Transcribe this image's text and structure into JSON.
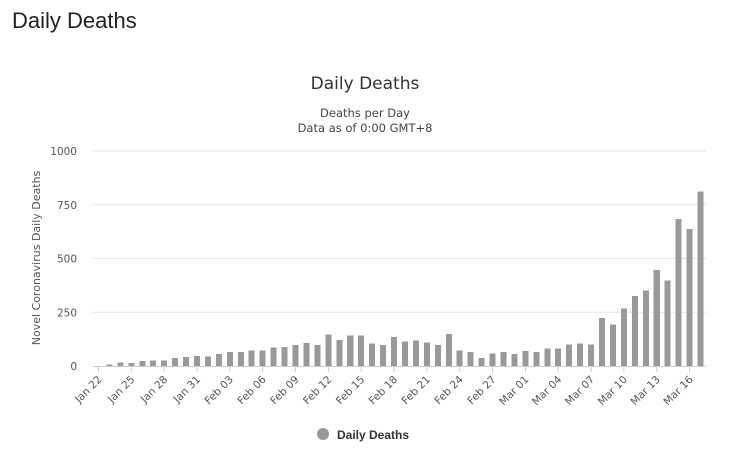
{
  "page": {
    "heading": "Daily Deaths"
  },
  "chart_data": {
    "type": "bar",
    "title": "Daily Deaths",
    "subtitle_lines": [
      "Deaths per Day",
      "Data as of 0:00 GMT+8"
    ],
    "ylabel": "Novel Coronavirus Daily Deaths",
    "xlabel": "",
    "ylim": [
      0,
      1000
    ],
    "y_ticks": [
      0,
      250,
      500,
      750,
      1000
    ],
    "grid": true,
    "legend_position": "bottom-center",
    "bar_color": "#999999",
    "categories": [
      "Jan 22",
      "Jan 23",
      "Jan 24",
      "Jan 25",
      "Jan 26",
      "Jan 27",
      "Jan 28",
      "Jan 29",
      "Jan 30",
      "Jan 31",
      "Feb 01",
      "Feb 02",
      "Feb 03",
      "Feb 04",
      "Feb 05",
      "Feb 06",
      "Feb 07",
      "Feb 08",
      "Feb 09",
      "Feb 10",
      "Feb 11",
      "Feb 12",
      "Feb 13",
      "Feb 14",
      "Feb 15",
      "Feb 16",
      "Feb 17",
      "Feb 18",
      "Feb 19",
      "Feb 20",
      "Feb 21",
      "Feb 22",
      "Feb 23",
      "Feb 24",
      "Feb 25",
      "Feb 26",
      "Feb 27",
      "Feb 28",
      "Feb 29",
      "Mar 01",
      "Mar 02",
      "Mar 03",
      "Mar 04",
      "Mar 05",
      "Mar 06",
      "Mar 07",
      "Mar 08",
      "Mar 09",
      "Mar 10",
      "Mar 11",
      "Mar 12",
      "Mar 13",
      "Mar 14",
      "Mar 15",
      "Mar 16",
      "Mar 17"
    ],
    "x_tick_labels": [
      "Jan 22",
      "Jan 25",
      "Jan 28",
      "Jan 31",
      "Feb 03",
      "Feb 06",
      "Feb 09",
      "Feb 12",
      "Feb 15",
      "Feb 18",
      "Feb 21",
      "Feb 24",
      "Feb 27",
      "Mar 01",
      "Mar 04",
      "Mar 07",
      "Mar 10",
      "Mar 13",
      "Mar 16"
    ],
    "series": [
      {
        "name": "Daily Deaths",
        "values": [
          0,
          8,
          16,
          15,
          24,
          26,
          26,
          38,
          43,
          46,
          45,
          57,
          64,
          66,
          73,
          73,
          86,
          89,
          97,
          108,
          97,
          146,
          121,
          143,
          142,
          105,
          98,
          136,
          114,
          118,
          109,
          97,
          150,
          71,
          64,
          37,
          58,
          64,
          57,
          70,
          65,
          81,
          82,
          101,
          104,
          101,
          223,
          194,
          268,
          326,
          351,
          447,
          398,
          683,
          637,
          811
        ]
      }
    ]
  }
}
